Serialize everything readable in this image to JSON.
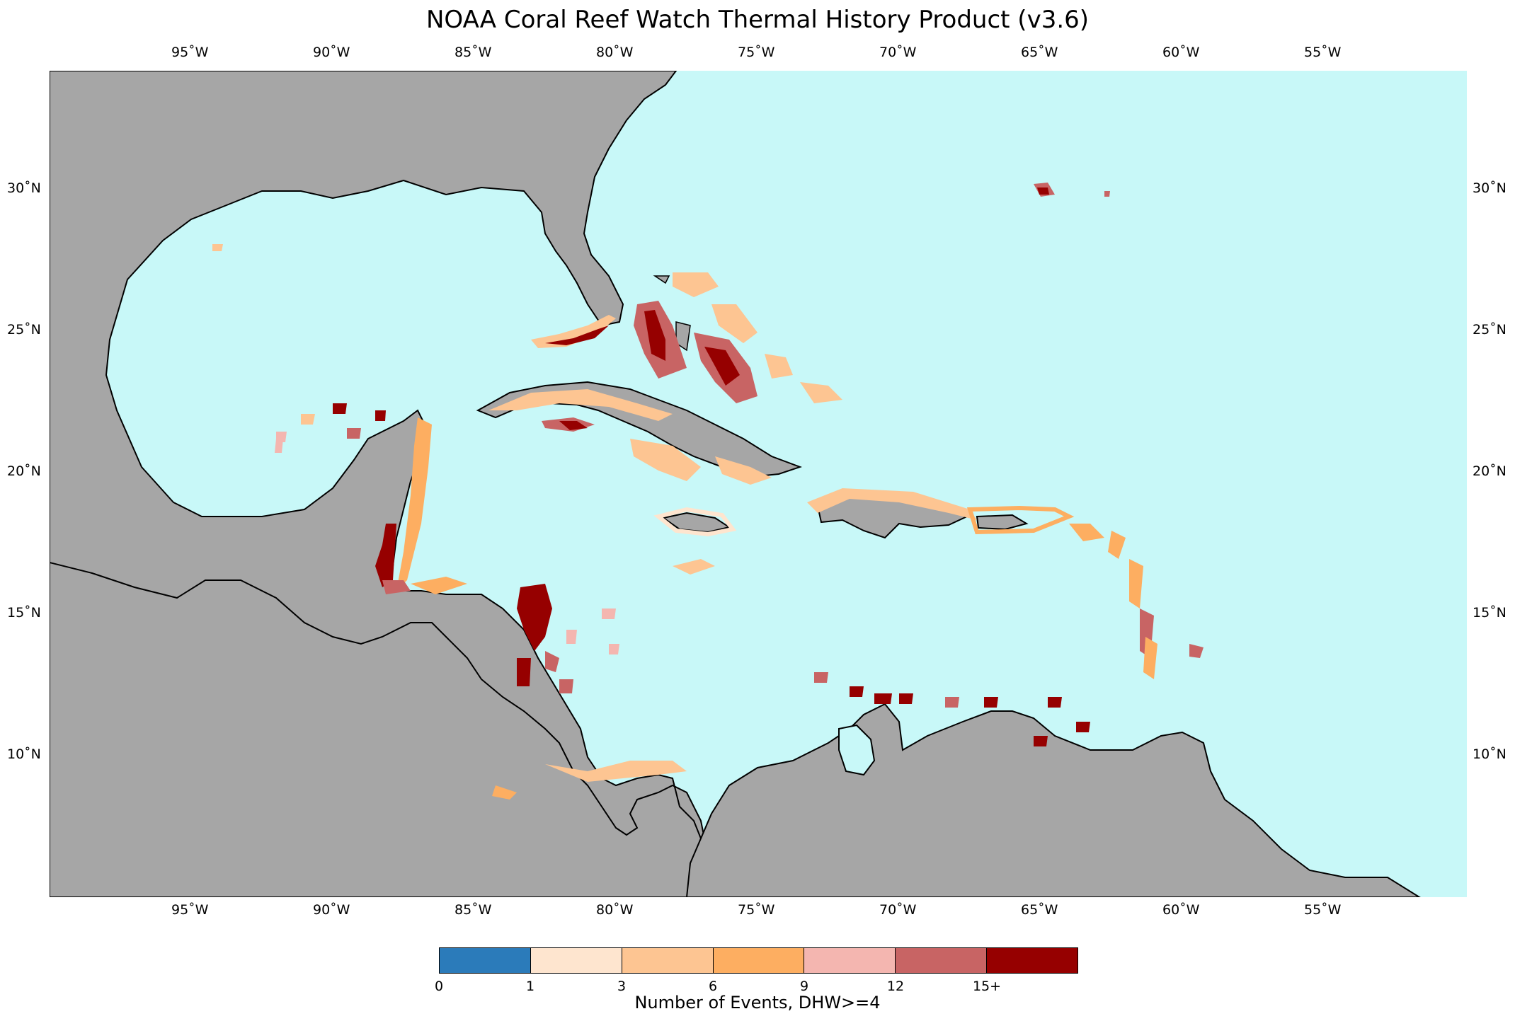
{
  "title": "NOAA Coral Reef Watch Thermal History Product (v3.6)",
  "map": {
    "ocean_color": "#c8f8f8",
    "land_color": "#a6a6a6",
    "lon_range": [
      -100,
      -50
    ],
    "lat_range": [
      5,
      34
    ]
  },
  "axes": {
    "lon_ticks": [
      "95˚W",
      "90˚W",
      "85˚W",
      "80˚W",
      "75˚W",
      "70˚W",
      "65˚W",
      "60˚W",
      "55˚W"
    ],
    "lat_ticks": [
      "30˚N",
      "25˚N",
      "20˚N",
      "15˚N",
      "10˚N"
    ]
  },
  "colorbar": {
    "title": "Number of Events, DHW>=4",
    "tick_labels": [
      "0",
      "1",
      "3",
      "6",
      "9",
      "12",
      "15+"
    ],
    "colors": [
      "#2b7bba",
      "#fee5cf",
      "#fdc592",
      "#fdae61",
      "#f4b6b0",
      "#c86464",
      "#960000"
    ]
  }
}
